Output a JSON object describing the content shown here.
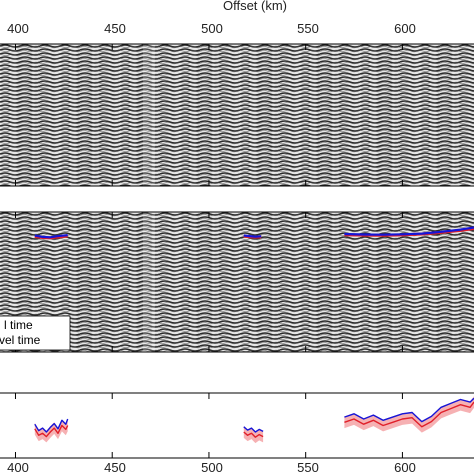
{
  "chart_data": [
    {
      "panel": "top-seismic",
      "type": "heatmap",
      "xlabel": "Offset (km)",
      "xlim": [
        392,
        637
      ],
      "x_ticks": [
        400,
        450,
        500,
        550,
        600
      ],
      "legend": [],
      "colors": {
        "trace": "#3c3c3c",
        "frame": "#000000"
      }
    },
    {
      "panel": "middle-seismic-picks",
      "type": "heatmap",
      "xlim": [
        392,
        637
      ],
      "legend": [
        "l time",
        "vel time"
      ],
      "series": [
        {
          "color": "#e0202a",
          "segments": [
            {
              "x": [
                410,
                414,
                418,
                421,
                424,
                427
              ],
              "y": [
                0.125,
                0.13,
                0.132,
                0.128,
                0.126,
                0.122
              ]
            },
            {
              "x": [
                518,
                521,
                524,
                527
              ],
              "y": [
                0.123,
                0.126,
                0.128,
                0.127
              ]
            },
            {
              "x": [
                570,
                580,
                590,
                600,
                610,
                620,
                630,
                637
              ],
              "y": [
                0.116,
                0.118,
                0.119,
                0.117,
                0.112,
                0.104,
                0.094,
                0.084
              ]
            }
          ]
        },
        {
          "color": "#1515d8",
          "segments": [
            {
              "x": [
                410,
                414,
                418,
                421,
                424,
                427
              ],
              "y": [
                0.12,
                0.127,
                0.129,
                0.124,
                0.121,
                0.118
              ]
            },
            {
              "x": [
                518,
                521,
                524,
                527
              ],
              "y": [
                0.12,
                0.123,
                0.126,
                0.124
              ]
            },
            {
              "x": [
                570,
                580,
                590,
                600,
                610,
                620,
                630,
                637
              ],
              "y": [
                0.112,
                0.115,
                0.116,
                0.114,
                0.11,
                0.101,
                0.09,
                0.079
              ]
            }
          ]
        }
      ],
      "colors": {
        "trace": "#3c3c3c",
        "frame": "#000000"
      }
    },
    {
      "panel": "bottom-residual",
      "type": "line",
      "xlim": [
        392,
        637
      ],
      "ylim": [
        0,
        1
      ],
      "x_ticks": [
        400,
        450,
        500,
        550,
        600
      ],
      "series": [
        {
          "color": "#e0202a",
          "segments": [
            {
              "x": [
                410,
                412,
                414,
                416,
                418,
                420,
                422,
                424,
                426,
                427
              ],
              "y": [
                0.45,
                0.35,
                0.38,
                0.33,
                0.4,
                0.46,
                0.38,
                0.5,
                0.44,
                0.5
              ]
            },
            {
              "x": [
                518,
                520,
                522,
                524,
                526,
                528
              ],
              "y": [
                0.4,
                0.35,
                0.38,
                0.32,
                0.36,
                0.33
              ]
            },
            {
              "x": [
                570,
                575,
                580,
                585,
                590,
                595,
                600,
                605,
                610,
                615,
                620,
                625,
                630,
                635,
                637
              ],
              "y": [
                0.55,
                0.6,
                0.52,
                0.58,
                0.5,
                0.55,
                0.6,
                0.62,
                0.48,
                0.56,
                0.7,
                0.76,
                0.82,
                0.78,
                0.86
              ]
            }
          ]
        },
        {
          "color": "#1515d8",
          "segments": [
            {
              "x": [
                410,
                412,
                414,
                416,
                418,
                420,
                422,
                424,
                426,
                427
              ],
              "y": [
                0.52,
                0.42,
                0.46,
                0.4,
                0.47,
                0.53,
                0.45,
                0.58,
                0.52,
                0.6
              ]
            },
            {
              "x": [
                518,
                520,
                522,
                524,
                526,
                528
              ],
              "y": [
                0.48,
                0.43,
                0.46,
                0.4,
                0.44,
                0.41
              ]
            },
            {
              "x": [
                570,
                575,
                580,
                585,
                590,
                595,
                600,
                605,
                610,
                615,
                620,
                625,
                630,
                635,
                637
              ],
              "y": [
                0.63,
                0.68,
                0.6,
                0.66,
                0.58,
                0.63,
                0.68,
                0.7,
                0.56,
                0.64,
                0.78,
                0.84,
                0.9,
                0.86,
                0.92
              ]
            }
          ]
        }
      ],
      "band_color": "#f4a3a6",
      "colors": {
        "frame": "#000000"
      }
    }
  ],
  "header": {
    "xlabel": "Offset (km)",
    "top_ticks": [
      "400",
      "450",
      "500",
      "550",
      "600"
    ],
    "bottom_ticks": [
      "400",
      "450",
      "500",
      "550",
      "600"
    ]
  },
  "legend": {
    "line1": "l time",
    "line2": "vel time"
  }
}
